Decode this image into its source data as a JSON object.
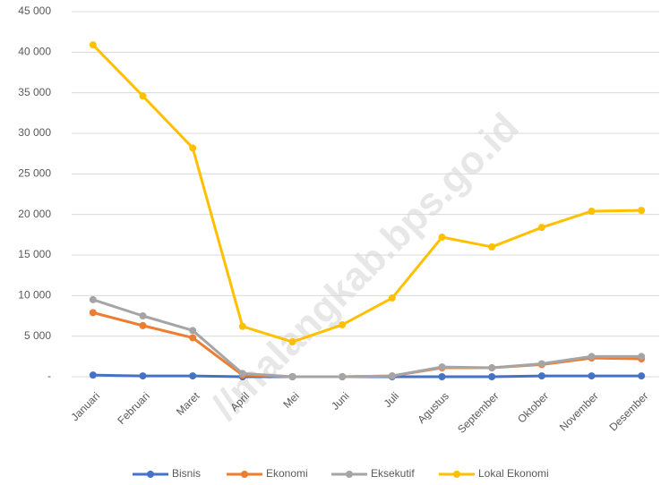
{
  "watermark": "//malangkab.bps.go.id",
  "chart_data": {
    "type": "line",
    "categories": [
      "Januari",
      "Februari",
      "Maret",
      "April",
      "Mei",
      "Juni",
      "Juli",
      "Agustus",
      "September",
      "Oktober",
      "November",
      "Desember"
    ],
    "series": [
      {
        "name": "Bisnis",
        "color": "#4472c4",
        "values": [
          200,
          100,
          100,
          0,
          0,
          0,
          0,
          0,
          0,
          100,
          100,
          100
        ]
      },
      {
        "name": "Ekonomi",
        "color": "#ed7d31",
        "values": [
          7900,
          6300,
          4800,
          200,
          0,
          0,
          100,
          1100,
          1100,
          1500,
          2300,
          2200
        ]
      },
      {
        "name": "Eksekutif",
        "color": "#a5a5a5",
        "values": [
          9500,
          7500,
          5700,
          400,
          0,
          0,
          100,
          1200,
          1100,
          1600,
          2500,
          2500
        ]
      },
      {
        "name": "Lokal Ekonomi",
        "color": "#ffc000",
        "values": [
          40900,
          34600,
          28200,
          6200,
          4300,
          6400,
          9700,
          17200,
          16000,
          18400,
          20400,
          20500
        ]
      }
    ],
    "ylim": [
      0,
      45000
    ],
    "yticks": [
      {
        "value": 0,
        "label": "-"
      },
      {
        "value": 5000,
        "label": "5 000"
      },
      {
        "value": 10000,
        "label": "10 000"
      },
      {
        "value": 15000,
        "label": "15 000"
      },
      {
        "value": 20000,
        "label": "20 000"
      },
      {
        "value": 25000,
        "label": "25 000"
      },
      {
        "value": 30000,
        "label": "30 000"
      },
      {
        "value": 35000,
        "label": "35 000"
      },
      {
        "value": 40000,
        "label": "40 000"
      },
      {
        "value": 45000,
        "label": "45 000"
      }
    ],
    "grid": true,
    "legend": "bottom"
  }
}
